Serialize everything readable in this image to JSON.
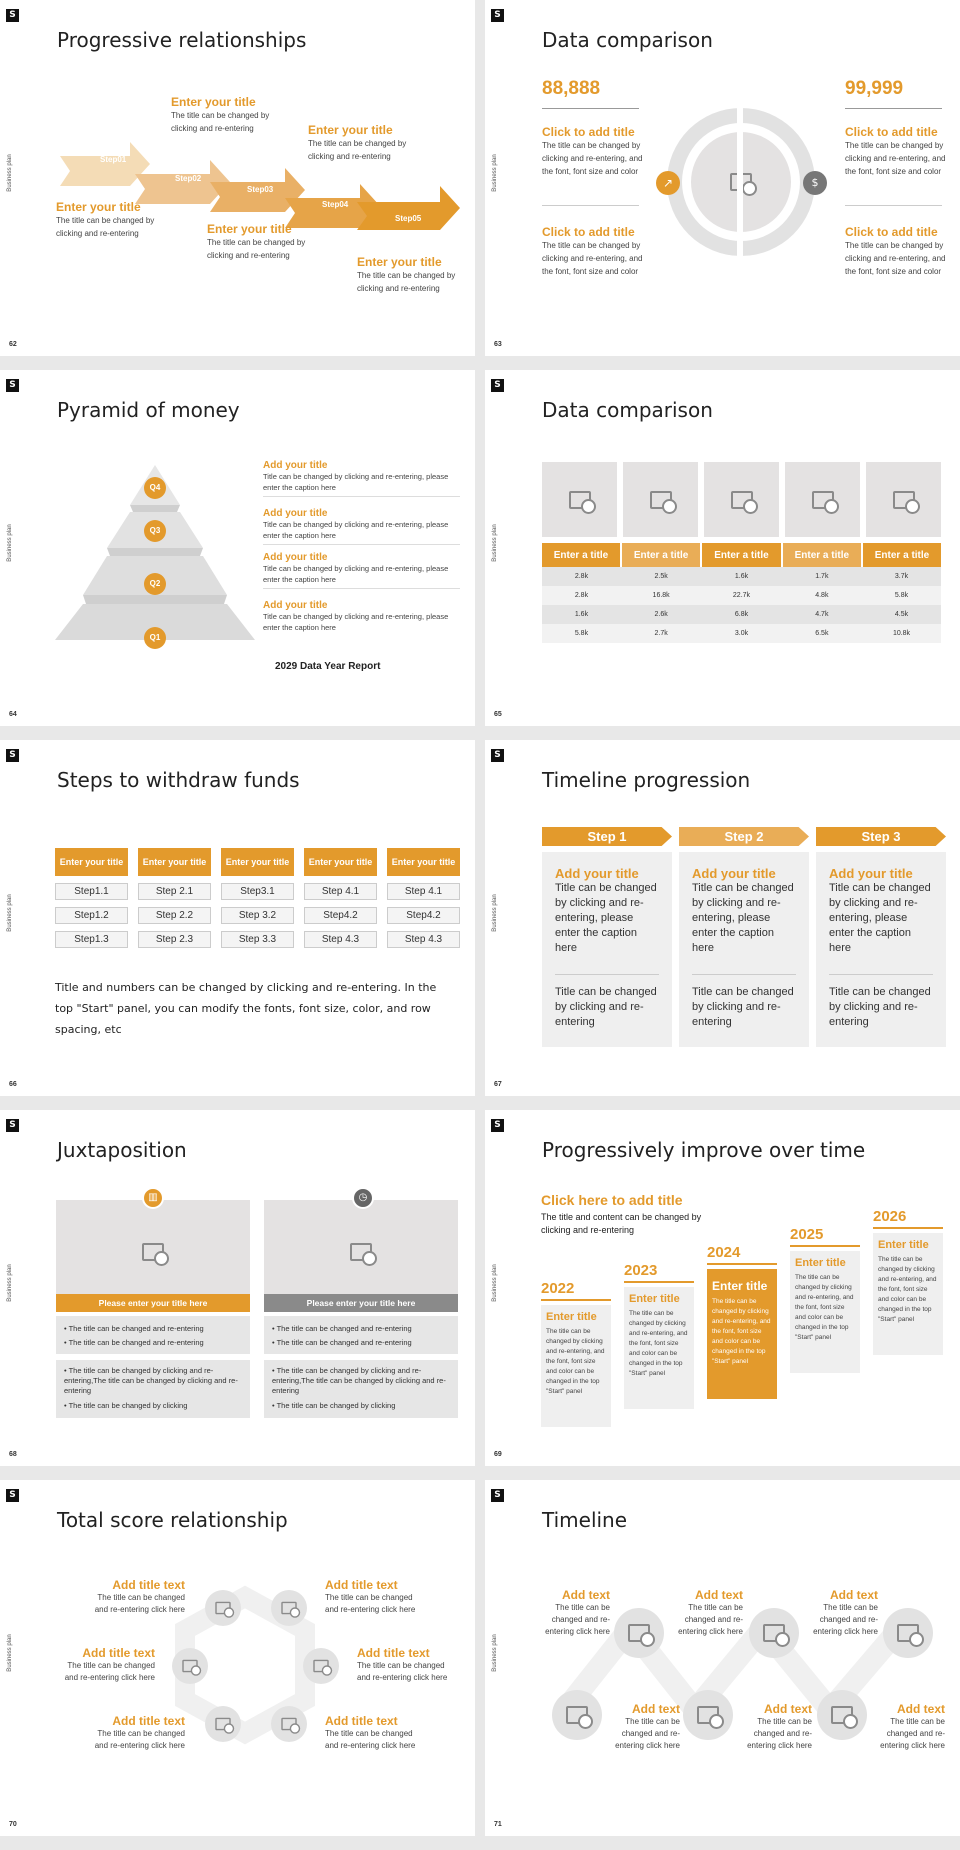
{
  "brand_mark": "S",
  "side_label": "Business plan",
  "colors": {
    "accent": "#e39a2c",
    "light": "#e4e2e2"
  },
  "s62": {
    "num": "62",
    "title": "Progressive relationships",
    "steps": [
      "Step01",
      "Step02",
      "Step03",
      "Step04",
      "Step05"
    ],
    "blocks": [
      {
        "h": "Enter your title",
        "t": "The title can be changed by clicking and re-entering"
      },
      {
        "h": "Enter your title",
        "t": "The title can be changed by clicking and re-entering"
      },
      {
        "h": "Enter your title",
        "t": "The title can be changed by clicking and re-entering"
      },
      {
        "h": "Enter your title",
        "t": "The title can be changed by clicking and re-entering"
      },
      {
        "h": "Enter your title",
        "t": "The title can be changed by clicking and re-entering"
      }
    ]
  },
  "s63": {
    "num": "63",
    "title": "Data comparison",
    "left_value": "88,888",
    "right_value": "99,999",
    "blocks": [
      {
        "h": "Click to add title",
        "t": "The title can be changed by clicking and re-entering, and the font, font size and color"
      },
      {
        "h": "Click to add title",
        "t": "The title can be changed by clicking and re-entering, and the font, font size and color"
      },
      {
        "h": "Click to add title",
        "t": "The title can be changed by clicking and re-entering, and the font, font size and color"
      },
      {
        "h": "Click to add title",
        "t": "The title can be changed by clicking and re-entering, and the font, font size and color"
      }
    ]
  },
  "s64": {
    "num": "64",
    "title": "Pyramid of money",
    "levels": [
      "Q4",
      "Q3",
      "Q2",
      "Q1"
    ],
    "items": [
      {
        "h": "Add your title",
        "t": "Title can be changed by clicking and re-entering, please enter the caption here"
      },
      {
        "h": "Add your title",
        "t": "Title can be changed by clicking and re-entering, please enter the caption here"
      },
      {
        "h": "Add your title",
        "t": "Title can be changed by clicking and re-entering, please enter the caption here"
      },
      {
        "h": "Add your title",
        "t": "Title can be changed by clicking and re-entering, please enter the caption here"
      }
    ],
    "footer": "2029 Data Year Report"
  },
  "s65": {
    "num": "65",
    "title": "Data comparison",
    "headers": [
      "Enter a title",
      "Enter a title",
      "Enter a title",
      "Enter a title",
      "Enter a title"
    ],
    "rows": [
      [
        "2.8k",
        "2.5k",
        "1.6k",
        "1.7k",
        "3.7k"
      ],
      [
        "2.8k",
        "16.8k",
        "22.7k",
        "4.8k",
        "5.8k"
      ],
      [
        "1.6k",
        "2.6k",
        "6.8k",
        "4.7k",
        "4.5k"
      ],
      [
        "5.8k",
        "2.7k",
        "3.0k",
        "6.5k",
        "10.8k"
      ]
    ]
  },
  "s66": {
    "num": "66",
    "title": "Steps to withdraw funds",
    "cols": [
      {
        "h": "Enter your title",
        "steps": [
          "Step1.1",
          "Step1.2",
          "Step1.3"
        ]
      },
      {
        "h": "Enter your title",
        "steps": [
          "Step 2.1",
          "Step 2.2",
          "Step 2.3"
        ]
      },
      {
        "h": "Enter your title",
        "steps": [
          "Step3.1",
          "Step 3.2",
          "Step 3.3"
        ]
      },
      {
        "h": "Enter your title",
        "steps": [
          "Step 4.1",
          "Step4.2",
          "Step 4.3"
        ]
      },
      {
        "h": "Enter your title",
        "steps": [
          "Step 4.1",
          "Step4.2",
          "Step 4.3"
        ]
      }
    ],
    "note": "Title and numbers can be changed by clicking and re-entering. In the top \"Start\" panel, you can modify the fonts, font size, color, and row spacing, etc"
  },
  "s67": {
    "num": "67",
    "title": "Timeline progression",
    "cols": [
      {
        "step": "Step 1",
        "h": "Add your title",
        "t1": "Title can be changed by clicking and re-entering, please enter the caption here",
        "t2": "Title can be changed by clicking and re-entering"
      },
      {
        "step": "Step 2",
        "h": "Add your title",
        "t1": "Title can be changed by clicking and re-entering, please enter the caption here",
        "t2": "Title can be changed by clicking and re-entering"
      },
      {
        "step": "Step 3",
        "h": "Add your title",
        "t1": "Title can be changed by clicking and re-entering, please enter the caption here",
        "t2": "Title can be changed by clicking and re-entering"
      }
    ]
  },
  "s68": {
    "num": "68",
    "title": "Juxtaposition",
    "panels": [
      {
        "bar": "Please enter your title here",
        "b1": [
          "The title can be changed and re-entering",
          "The title can be changed and re-entering"
        ],
        "b2": [
          "The title can be changed by clicking and re-entering,The title can be changed by clicking and re-entering",
          "The title can be changed by clicking"
        ]
      },
      {
        "bar": "Please enter your title here",
        "b1": [
          "The title can be changed and re-entering",
          "The title can be changed and re-entering"
        ],
        "b2": [
          "The title can be changed by clicking and re-entering,The title can be changed by clicking and re-entering",
          "The title can be changed by clicking"
        ]
      }
    ]
  },
  "s69": {
    "num": "69",
    "title": "Progressively improve over time",
    "head": "Click here to add title",
    "sub": "The title and content can be changed by clicking and re-entering",
    "years": [
      {
        "y": "2022",
        "h": "Enter title",
        "t": "The title can be changed by clicking and re-entering, and the font, font size and color can be changed in the top \"Start\" panel"
      },
      {
        "y": "2023",
        "h": "Enter title",
        "t": "The title can be changed by clicking and re-entering, and the font, font size and color can be changed in the top \"Start\" panel"
      },
      {
        "y": "2024",
        "h": "Enter title",
        "t": "The title can be changed by clicking and re-entering, and the font, font size and color can be changed in the top \"Start\" panel"
      },
      {
        "y": "2025",
        "h": "Enter title",
        "t": "The title can be changed by clicking and re-entering, and the font, font size and color can be changed in the top \"Start\" panel"
      },
      {
        "y": "2026",
        "h": "Enter title",
        "t": "The title can be changed by clicking and re-entering, and the font, font size and color can be changed in the top \"Start\" panel"
      }
    ]
  },
  "s70": {
    "num": "70",
    "title": "Total score relationship",
    "items": [
      {
        "h": "Add title text",
        "t": "The title can be changed and re-entering click here"
      },
      {
        "h": "Add title text",
        "t": "The title can be changed and re-entering click here"
      },
      {
        "h": "Add title text",
        "t": "The title can be changed and re-entering click here"
      },
      {
        "h": "Add title text",
        "t": "The title can be changed and re-entering click here"
      },
      {
        "h": "Add title text",
        "t": "The title can be changed and re-entering click here"
      },
      {
        "h": "Add title text",
        "t": "The title can be changed and re-entering click here"
      }
    ]
  },
  "s71": {
    "num": "71",
    "title": "Timeline",
    "items": [
      {
        "h": "Add text",
        "t": "The title can be changed and re-entering click here"
      },
      {
        "h": "Add text",
        "t": "The title can be changed and re-entering click here"
      },
      {
        "h": "Add text",
        "t": "The title can be changed and re-entering click here"
      },
      {
        "h": "Add text",
        "t": "The title can be changed and re-entering click here"
      },
      {
        "h": "Add text",
        "t": "The title can be changed and re-entering click here"
      },
      {
        "h": "Add text",
        "t": "The title can be changed and re-entering click here"
      }
    ]
  }
}
